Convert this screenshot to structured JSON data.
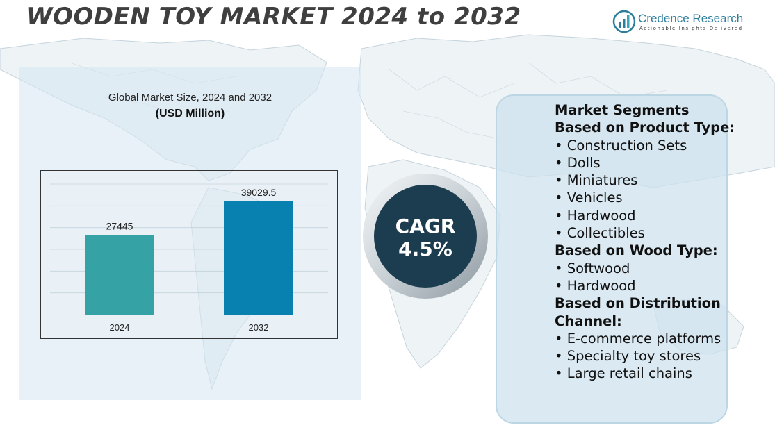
{
  "header": {
    "title": "WOODEN TOY MARKET 2024 to 2032"
  },
  "brand": {
    "name": "Credence Research",
    "tagline": "Actionable Insights Delivered"
  },
  "chart_data": {
    "type": "bar",
    "title": "Global Market Size, 2024 and 2032",
    "unit": "(USD Million)",
    "categories": [
      "2024",
      "2032"
    ],
    "values": [
      27445,
      39029.5
    ],
    "value_labels": [
      "27445",
      "39029.5"
    ],
    "bar_colors": [
      "#35a3a6",
      "#0880b0"
    ],
    "ylim": [
      0,
      45000
    ],
    "grid": true,
    "legend": "none"
  },
  "cagr": {
    "label": "CAGR",
    "value": "4.5%"
  },
  "segments": {
    "heading": "Market Segments",
    "groups": [
      {
        "title": "Based on Product Type:",
        "items": [
          "Construction Sets",
          "Dolls",
          "Miniatures",
          "Vehicles",
          "Hardwood",
          "Collectibles"
        ]
      },
      {
        "title": "Based on Wood Type:",
        "items": [
          "Softwood",
          "Hardwood"
        ]
      },
      {
        "title": "Based on Distribution Channel:",
        "items": [
          "E-commerce platforms",
          "Specialty toy stores",
          "Large retail chains"
        ]
      }
    ]
  },
  "colors": {
    "brand": "#2d7e9c",
    "cagr_circle": "#1c3d4f",
    "panel": "#d6e6f0"
  }
}
